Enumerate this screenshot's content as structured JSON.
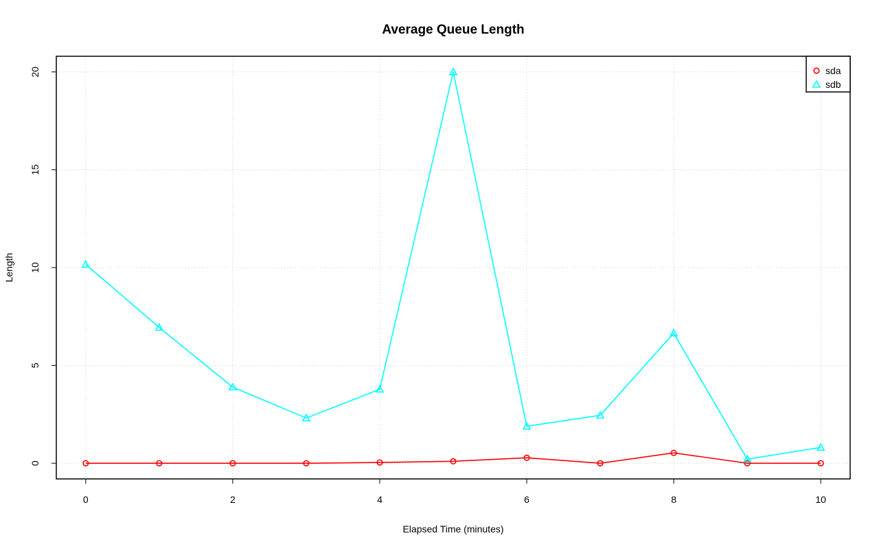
{
  "chart_data": {
    "type": "line",
    "title": "Average Queue Length",
    "x_label": "Elapsed Time (minutes)",
    "y_label": "Length",
    "x": [
      0,
      1,
      2,
      3,
      4,
      5,
      6,
      7,
      8,
      9,
      10
    ],
    "series": [
      {
        "name": "sda",
        "color": "#ff0000",
        "marker": "circle",
        "values": [
          0,
          0,
          0,
          0,
          0.04,
          0.1,
          0.28,
          0,
          0.53,
          0,
          0
        ]
      },
      {
        "name": "sdb",
        "color": "#00ffff",
        "marker": "triangle",
        "values": [
          10.16,
          6.94,
          3.89,
          2.31,
          3.78,
          20.0,
          1.89,
          2.45,
          6.65,
          0.21,
          0.81
        ]
      }
    ],
    "xlim": [
      -0.4,
      10.4
    ],
    "xticks": [
      0,
      2,
      4,
      6,
      8,
      10
    ],
    "ylim": [
      -0.8,
      20.8
    ],
    "yticks": [
      0,
      5,
      10,
      15,
      20
    ],
    "grid": true,
    "legend": "top-right"
  }
}
